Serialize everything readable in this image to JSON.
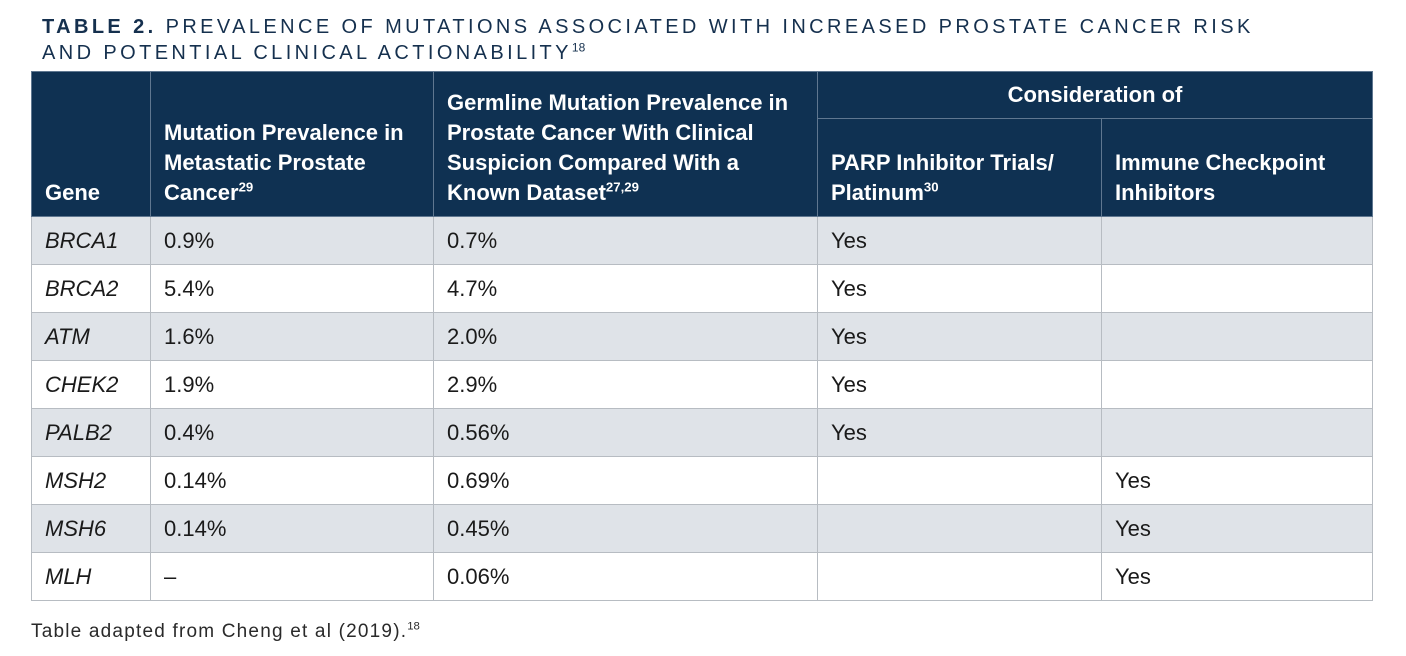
{
  "title": {
    "label": "TABLE 2.",
    "text_line1": "PREVALENCE OF MUTATIONS ASSOCIATED WITH INCREASED PROSTATE CANCER RISK",
    "text_line2": "AND POTENTIAL CLINICAL ACTIONABILITY",
    "ref": "18"
  },
  "table": {
    "headers": {
      "gene": "Gene",
      "metastatic": "Mutation Prevalence in Metastatic Prostate Cancer",
      "metastatic_ref": "29",
      "germline": "Germline Mutation Prevalence in Prostate Cancer With Clinical Suspicion Compared With a Known Dataset",
      "germline_ref": "27,29",
      "consideration": "Consideration of",
      "parp": "PARP Inhibitor Trials/ Platinum",
      "parp_ref": "30",
      "immune": "Immune Checkpoint Inhibitors"
    },
    "rows": [
      {
        "gene": "BRCA1",
        "metastatic": "0.9%",
        "germline": "0.7%",
        "parp": "Yes",
        "immune": ""
      },
      {
        "gene": "BRCA2",
        "metastatic": "5.4%",
        "germline": "4.7%",
        "parp": "Yes",
        "immune": ""
      },
      {
        "gene": "ATM",
        "metastatic": "1.6%",
        "germline": "2.0%",
        "parp": "Yes",
        "immune": ""
      },
      {
        "gene": "CHEK2",
        "metastatic": "1.9%",
        "germline": "2.9%",
        "parp": "Yes",
        "immune": ""
      },
      {
        "gene": "PALB2",
        "metastatic": "0.4%",
        "germline": "0.56%",
        "parp": "Yes",
        "immune": ""
      },
      {
        "gene": "MSH2",
        "metastatic": "0.14%",
        "germline": "0.69%",
        "parp": "",
        "immune": "Yes"
      },
      {
        "gene": "MSH6",
        "metastatic": "0.14%",
        "germline": "0.45%",
        "parp": "",
        "immune": "Yes"
      },
      {
        "gene": "MLH",
        "metastatic": "–",
        "germline": "0.06%",
        "parp": "",
        "immune": "Yes"
      }
    ]
  },
  "caption": {
    "text": "Table adapted from Cheng et al (2019).",
    "ref": "18"
  }
}
